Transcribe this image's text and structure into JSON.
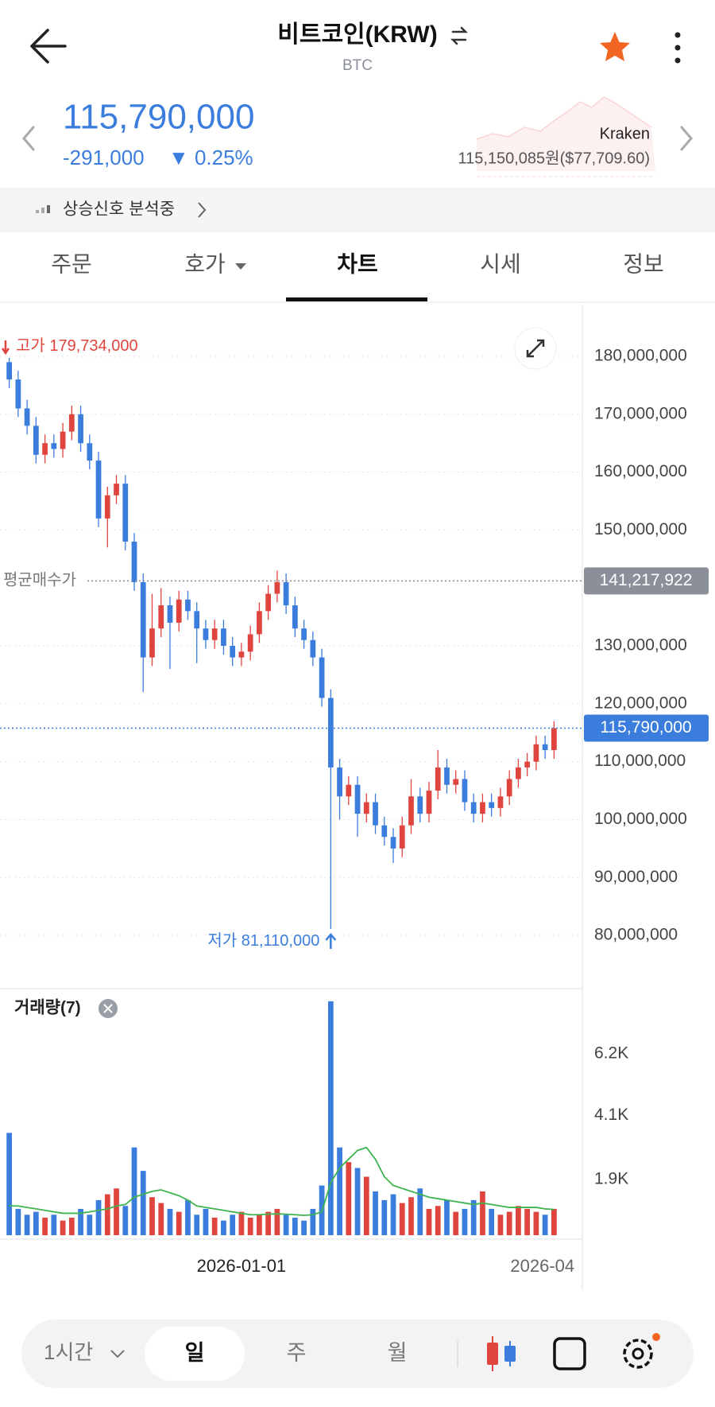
{
  "header": {
    "title": "비트코인(KRW)",
    "subtitle": "BTC"
  },
  "price": {
    "current": "115,790,000",
    "change": "-291,000",
    "change_rate": "▼ 0.25%",
    "exchange": "Kraken",
    "exchange_price": "115,150,085원($77,709.60)"
  },
  "signal": "상승신호 분석중",
  "tabs": {
    "items": [
      "주문",
      "호가",
      "차트",
      "시세",
      "정보"
    ],
    "active": 2
  },
  "chart_data": [
    {
      "type": "candlestick",
      "up_color": "#e0443e",
      "down_color": "#3b7ddd",
      "grid": true,
      "open": [
        179000000,
        176000000,
        171000000,
        168000000,
        163000000,
        165000000,
        164000000,
        167000000,
        170000000,
        165000000,
        162000000,
        152000000,
        156000000,
        158000000,
        148000000,
        141000000,
        128000000,
        133000000,
        137000000,
        134000000,
        138000000,
        136000000,
        133000000,
        131000000,
        133000000,
        130000000,
        128000000,
        129000000,
        132000000,
        136000000,
        139000000,
        141000000,
        137000000,
        133000000,
        131000000,
        128000000,
        121000000,
        109000000,
        104000000,
        106000000,
        101000000,
        103000000,
        99000000,
        97000000,
        95000000,
        99000000,
        104000000,
        101000000,
        105000000,
        109000000,
        106000000,
        107000000,
        103000000,
        101000000,
        103000000,
        102000000,
        104000000,
        107000000,
        109000000,
        110000000,
        113000000,
        112000000
      ],
      "high": [
        179734000,
        177500000,
        172500000,
        169500000,
        166500000,
        166500000,
        168500000,
        171500000,
        171500000,
        166500000,
        163500000,
        157500000,
        159500000,
        159500000,
        149500000,
        142500000,
        139000000,
        140000000,
        138500000,
        139500000,
        139500000,
        137500000,
        134500000,
        134500000,
        134500000,
        131500000,
        130500000,
        133500000,
        137500000,
        140500000,
        143000000,
        142500000,
        138500000,
        134500000,
        132500000,
        129500000,
        122500000,
        110500000,
        107500000,
        107500000,
        104500000,
        104500000,
        100500000,
        98500000,
        100500000,
        107000000,
        105500000,
        106500000,
        112000000,
        110500000,
        108500000,
        108500000,
        104500000,
        104500000,
        104500000,
        105500000,
        108500000,
        110500000,
        111500000,
        114500000,
        114500000,
        117000000
      ],
      "low": [
        174500000,
        169500000,
        166500000,
        161500000,
        161500000,
        162500000,
        162500000,
        165500000,
        163500000,
        160500000,
        150500000,
        147000000,
        154500000,
        146500000,
        139500000,
        122000000,
        126500000,
        131500000,
        126000000,
        132500000,
        134500000,
        127000000,
        129500000,
        129500000,
        128500000,
        126500000,
        126500000,
        127500000,
        130500000,
        134500000,
        137500000,
        135500000,
        131500000,
        129500000,
        126500000,
        119500000,
        81110000,
        100000000,
        102500000,
        97000000,
        99500000,
        97500000,
        95500000,
        92500000,
        93500000,
        97500000,
        99500000,
        99500000,
        103500000,
        104500000,
        104500000,
        101500000,
        99500000,
        99500000,
        100500000,
        100500000,
        102500000,
        105500000,
        107500000,
        108500000,
        110500000,
        110500000
      ],
      "close": [
        176000000,
        171000000,
        168000000,
        163000000,
        165000000,
        164000000,
        167000000,
        170000000,
        165000000,
        162000000,
        152000000,
        156000000,
        158000000,
        148000000,
        141000000,
        128000000,
        133000000,
        137000000,
        134000000,
        138000000,
        136000000,
        133000000,
        131000000,
        133000000,
        130000000,
        128000000,
        129000000,
        132000000,
        136000000,
        139000000,
        141000000,
        137000000,
        133000000,
        131000000,
        128000000,
        121000000,
        109000000,
        104000000,
        106000000,
        101000000,
        103000000,
        99000000,
        97000000,
        95000000,
        99000000,
        104000000,
        101000000,
        105000000,
        109000000,
        106000000,
        107000000,
        103000000,
        101000000,
        103000000,
        102000000,
        104000000,
        107000000,
        109000000,
        110000000,
        113000000,
        112000000,
        115790000
      ],
      "xlim": [
        0,
        62
      ],
      "xticks": [
        {
          "value": 26.5,
          "label": "2026-01-01"
        },
        {
          "value": 60.2,
          "label": "2026-04"
        }
      ],
      "ylim": [
        70800000,
        188930000
      ],
      "yticks": [
        {
          "value": 180000000,
          "label": "180,000,000"
        },
        {
          "value": 170000000,
          "label": "170,000,000"
        },
        {
          "value": 160000000,
          "label": "160,000,000"
        },
        {
          "value": 150000000,
          "label": "150,000,000"
        },
        {
          "value": 130000000,
          "label": "130,000,000"
        },
        {
          "value": 120000000,
          "label": "120,000,000"
        },
        {
          "value": 110000000,
          "label": "110,000,000"
        },
        {
          "value": 100000000,
          "label": "100,000,000"
        },
        {
          "value": 90000000,
          "label": "90,000,000"
        },
        {
          "value": 80000000,
          "label": "80,000,000"
        }
      ],
      "annotations": [
        {
          "text": "고가 179,734,000",
          "value": 179734000,
          "color": "#e0443e"
        },
        {
          "text": "저가 81,110,000",
          "value": 81110000,
          "color": "#3b7ddd"
        }
      ],
      "reference_lines": [
        {
          "name": "평균매수가",
          "value": 141217922,
          "label": "141,217,922",
          "color": "#8a8f99"
        },
        {
          "value": 115790000,
          "label": "115,790,000",
          "color": "#3b7ddd"
        }
      ]
    },
    {
      "type": "bar",
      "title": "거래량(7)",
      "values": [
        3500,
        900,
        700,
        800,
        600,
        700,
        500,
        600,
        900,
        700,
        1200,
        1400,
        1600,
        1000,
        3000,
        2200,
        1300,
        1100,
        900,
        800,
        1200,
        700,
        900,
        600,
        500,
        700,
        800,
        600,
        700,
        800,
        900,
        700,
        600,
        500,
        900,
        1700,
        8000,
        3000,
        2500,
        2300,
        2000,
        1500,
        1200,
        1400,
        1100,
        1300,
        1600,
        900,
        1000,
        1200,
        800,
        900,
        1200,
        1500,
        900,
        700,
        800,
        1000,
        900,
        800,
        700,
        900
      ],
      "moving_average": {
        "color": "#3fb34f",
        "values": [
          1000,
          1000,
          950,
          900,
          850,
          800,
          750,
          750,
          750,
          800,
          850,
          900,
          1000,
          1050,
          1300,
          1400,
          1500,
          1550,
          1450,
          1350,
          1200,
          1000,
          950,
          900,
          850,
          800,
          750,
          700,
          700,
          720,
          730,
          720,
          700,
          680,
          700,
          800,
          1800,
          2300,
          2600,
          2900,
          3000,
          2600,
          2000,
          1700,
          1600,
          1500,
          1400,
          1300,
          1250,
          1200,
          1150,
          1100,
          1050,
          1100,
          1050,
          1000,
          950,
          950,
          950,
          950,
          900,
          880
        ]
      },
      "ylim": [
        0,
        8270
      ],
      "yticks": [
        {
          "value": 6200,
          "label": "6.2K"
        },
        {
          "value": 4100,
          "label": "4.1K"
        },
        {
          "value": 1900,
          "label": "1.9K"
        }
      ]
    }
  ],
  "toolbar": {
    "interval": "1시간",
    "periods": [
      "일",
      "주",
      "월"
    ],
    "active": 0
  }
}
